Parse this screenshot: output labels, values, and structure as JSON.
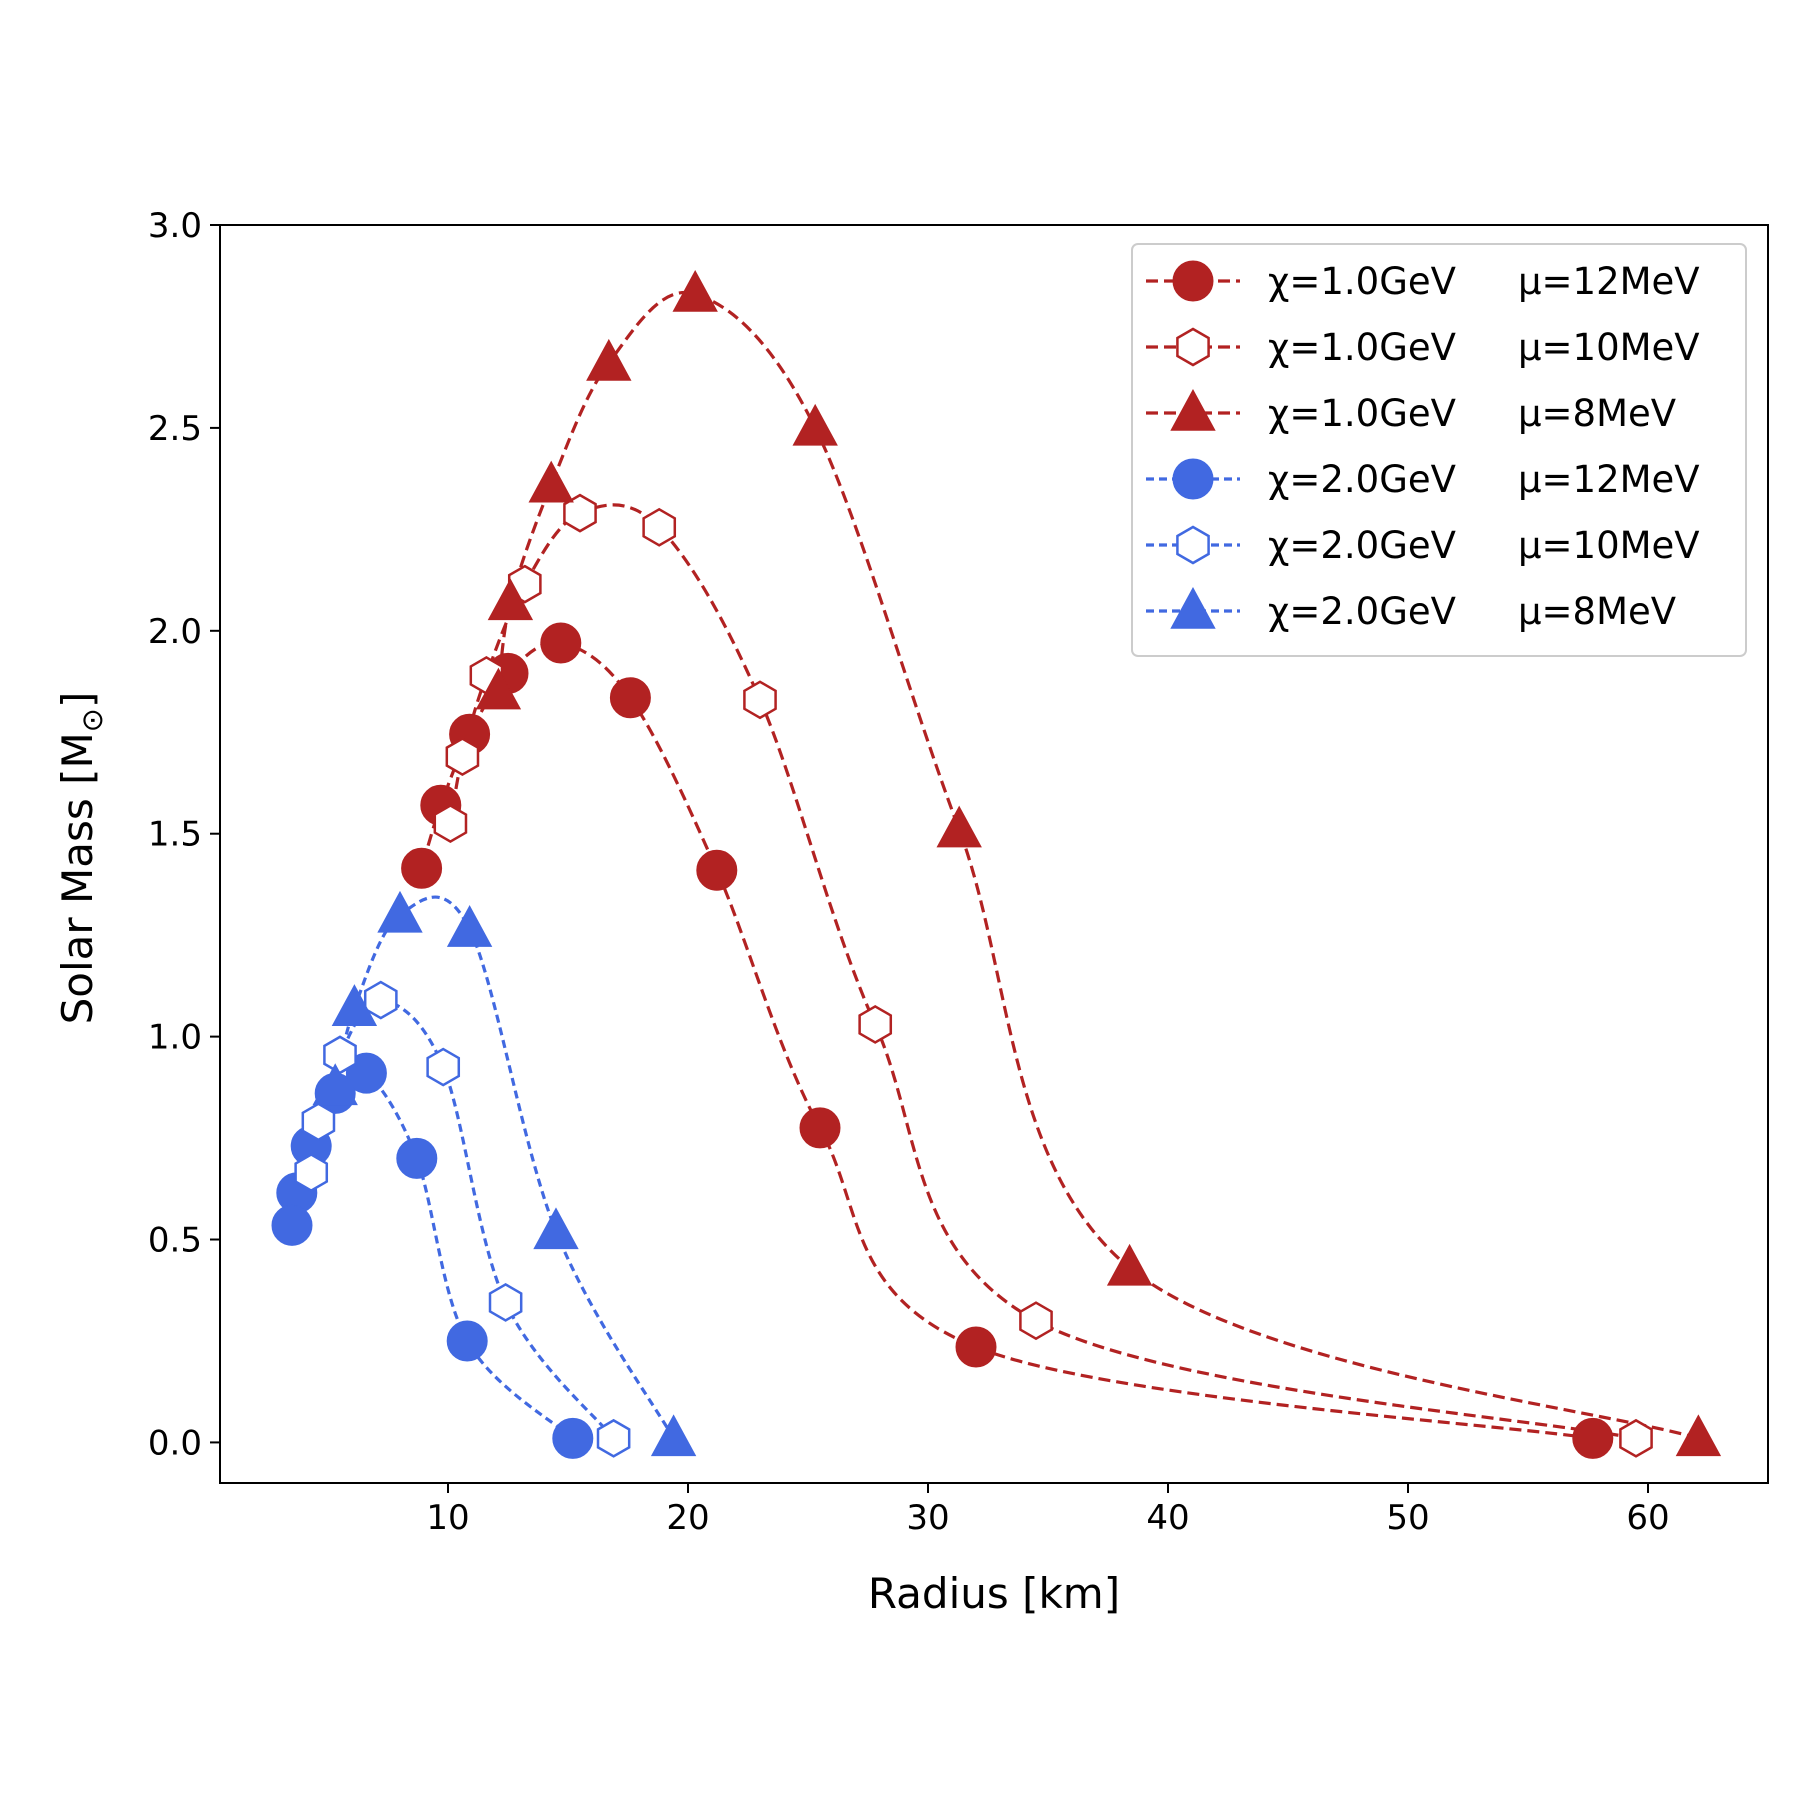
{
  "chart_data": {
    "type": "line",
    "title": "",
    "xlabel": "Radius [km]",
    "ylabel_main": "Solar Mass [M",
    "ylabel_symbol": "⊙",
    "ylabel_close": "]",
    "xlim": [
      0.5,
      65
    ],
    "ylim": [
      -0.1,
      3.0
    ],
    "xticks": [
      10,
      20,
      30,
      40,
      50,
      60
    ],
    "xtick_labels": [
      "10",
      "20",
      "30",
      "40",
      "50",
      "60"
    ],
    "yticks": [
      0.0,
      0.5,
      1.0,
      1.5,
      2.0,
      2.5,
      3.0
    ],
    "ytick_labels": [
      "0.0",
      "0.5",
      "1.0",
      "1.5",
      "2.0",
      "2.5",
      "3.0"
    ],
    "grid": false,
    "legend_position": "top-right",
    "series": [
      {
        "id": "r12",
        "chi_label": "χ=1.0GeV",
        "mu_label": "μ=12MeV",
        "color": "#b22222",
        "marker": "circle",
        "filled": true,
        "dash": "long",
        "x": [
          57.7,
          32.0,
          25.5,
          21.2,
          17.6,
          14.7,
          12.5,
          10.9,
          9.7,
          8.9
        ],
        "y": [
          0.01,
          0.235,
          0.775,
          1.41,
          1.835,
          1.97,
          1.895,
          1.745,
          1.57,
          1.415
        ]
      },
      {
        "id": "r10",
        "chi_label": "χ=1.0GeV",
        "mu_label": "μ=10MeV",
        "color": "#b22222",
        "marker": "hexagon",
        "filled": false,
        "dash": "long",
        "x": [
          59.5,
          34.5,
          27.8,
          23.0,
          18.8,
          15.5,
          13.2,
          11.6,
          10.6,
          10.1
        ],
        "y": [
          0.01,
          0.3,
          1.03,
          1.83,
          2.255,
          2.29,
          2.115,
          1.89,
          1.69,
          1.525
        ]
      },
      {
        "id": "r8",
        "chi_label": "χ=1.0GeV",
        "mu_label": "μ=8MeV",
        "color": "#b22222",
        "marker": "triangle",
        "filled": true,
        "dash": "long",
        "x": [
          62.1,
          38.4,
          31.3,
          25.3,
          20.3,
          16.7,
          14.3,
          12.6,
          12.1
        ],
        "y": [
          0.01,
          0.43,
          1.51,
          2.5,
          2.83,
          2.66,
          2.36,
          2.07,
          1.85
        ]
      },
      {
        "id": "b12",
        "chi_label": "χ=2.0GeV",
        "mu_label": "μ=12MeV",
        "color": "#4169e1",
        "marker": "circle",
        "filled": true,
        "dash": "short",
        "x": [
          15.2,
          10.8,
          8.7,
          6.6,
          5.3,
          4.3,
          3.7,
          3.5
        ],
        "y": [
          0.01,
          0.25,
          0.7,
          0.91,
          0.86,
          0.73,
          0.615,
          0.535
        ]
      },
      {
        "id": "b10",
        "chi_label": "χ=2.0GeV",
        "mu_label": "μ=10MeV",
        "color": "#4169e1",
        "marker": "hexagon",
        "filled": false,
        "dash": "short",
        "x": [
          16.9,
          12.4,
          9.8,
          7.2,
          5.5,
          4.6,
          4.3
        ],
        "y": [
          0.01,
          0.345,
          0.925,
          1.09,
          0.955,
          0.79,
          0.665
        ]
      },
      {
        "id": "b8",
        "chi_label": "χ=2.0GeV",
        "mu_label": "μ=8MeV",
        "color": "#4169e1",
        "marker": "triangle",
        "filled": true,
        "dash": "short",
        "x": [
          19.4,
          14.5,
          10.9,
          8.0,
          6.1,
          5.3
        ],
        "y": [
          0.01,
          0.52,
          1.265,
          1.3,
          1.07,
          0.875
        ]
      }
    ]
  }
}
